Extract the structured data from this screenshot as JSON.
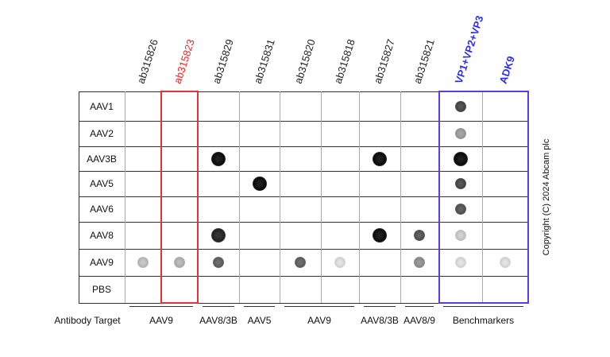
{
  "columns": [
    {
      "label": "ab315826",
      "color": "#222222"
    },
    {
      "label": "ab315823",
      "color": "#ff2020"
    },
    {
      "label": "ab315829",
      "color": "#222222"
    },
    {
      "label": "ab315831",
      "color": "#222222"
    },
    {
      "label": "ab315820",
      "color": "#222222"
    },
    {
      "label": "ab315818",
      "color": "#222222"
    },
    {
      "label": "ab315827",
      "color": "#222222"
    },
    {
      "label": "ab315821",
      "color": "#222222"
    },
    {
      "label": "VP1+VP2+VP3",
      "color": "#2a2aff"
    },
    {
      "label": "ADK9",
      "color": "#2a2aff"
    }
  ],
  "rows": [
    "AAV1",
    "AAV2",
    "AAV3B",
    "AAV5",
    "AAV6",
    "AAV8",
    "AAV9",
    "PBS"
  ],
  "highlight_colors": {
    "red_box": "#e8303a",
    "blue_box": "#5a3cf0"
  },
  "dots_intensity_by_row": [
    [
      0,
      0,
      0,
      0,
      0,
      0,
      0,
      0,
      0.75,
      0
    ],
    [
      0,
      0,
      0,
      0,
      0,
      0,
      0,
      0,
      0.4,
      0
    ],
    [
      0,
      0,
      1,
      0,
      0,
      0,
      1,
      0,
      1,
      0
    ],
    [
      0,
      0,
      0,
      1,
      0,
      0,
      0,
      0,
      0.75,
      0
    ],
    [
      0,
      0,
      0,
      0,
      0,
      0,
      0,
      0,
      0.7,
      0
    ],
    [
      0,
      0,
      0.9,
      0,
      0,
      0,
      1,
      0.7,
      0.2,
      0
    ],
    [
      0.25,
      0.3,
      0.65,
      0,
      0.65,
      0.12,
      0,
      0.45,
      0.12,
      0.12
    ],
    [
      0,
      0,
      0,
      0,
      0,
      0,
      0,
      0,
      0,
      0
    ]
  ],
  "target_label": "Antibody Target",
  "targets": [
    "AAV9",
    "AAV8/3B",
    "AAV5",
    "AAV9",
    "AAV8/3B",
    "AAV8/9",
    "Benchmarkers"
  ],
  "copyright": "Copyright (C) 2024 Abcam plc"
}
